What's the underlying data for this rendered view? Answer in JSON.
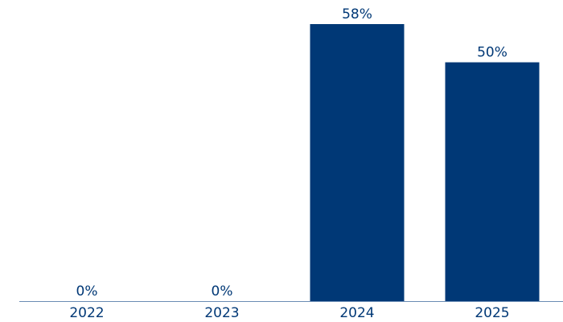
{
  "chart_data": {
    "type": "bar",
    "categories": [
      "2022",
      "2023",
      "2024",
      "2025"
    ],
    "values": [
      0,
      0,
      58,
      50
    ],
    "value_labels": [
      "0%",
      "0%",
      "58%",
      "50%"
    ],
    "color": "#003876"
  }
}
